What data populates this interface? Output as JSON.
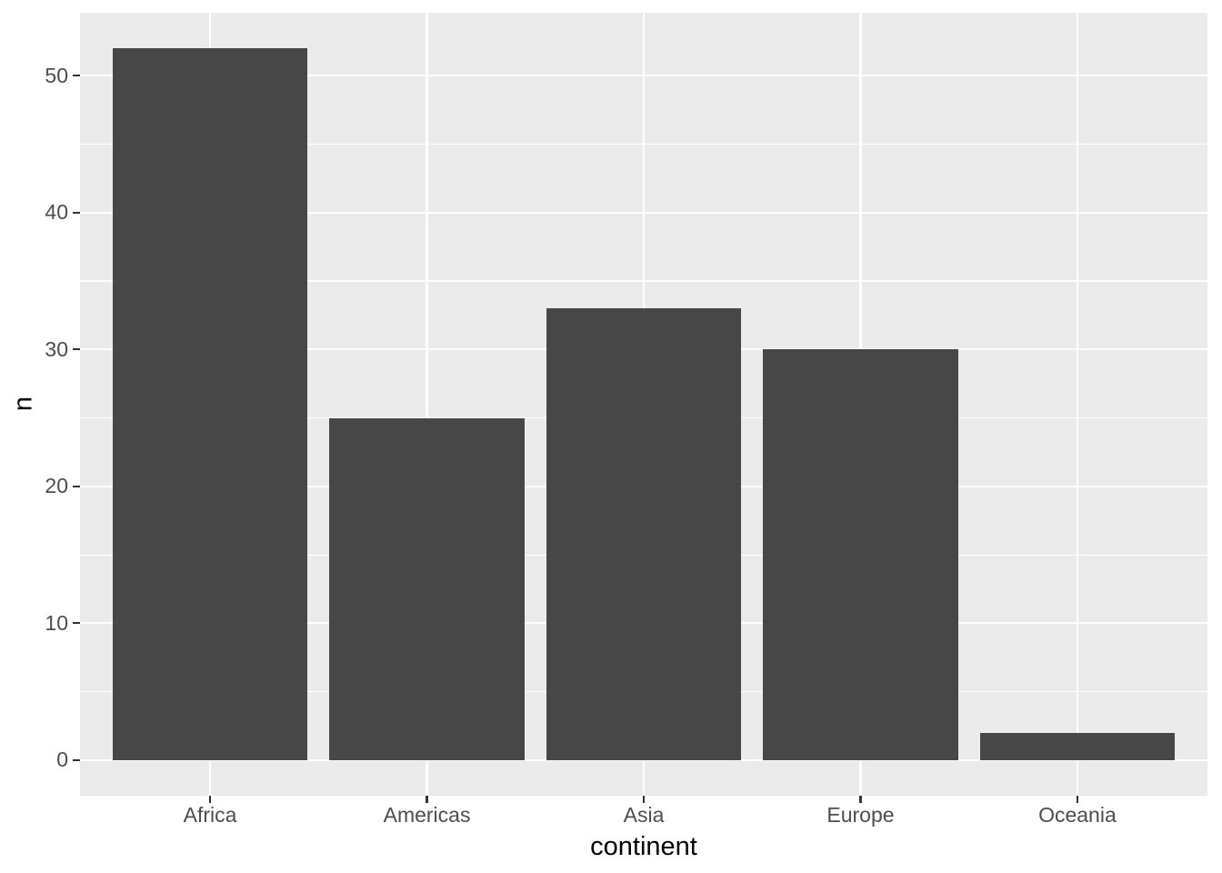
{
  "chart_data": {
    "type": "bar",
    "title": "",
    "xlabel": "continent",
    "ylabel": "n",
    "categories": [
      "Africa",
      "Americas",
      "Asia",
      "Europe",
      "Oceania"
    ],
    "values": [
      52,
      25,
      33,
      30,
      2
    ],
    "y_major_ticks": [
      0,
      10,
      20,
      30,
      40,
      50
    ],
    "y_minor_ticks": [
      5,
      15,
      25,
      35,
      45
    ],
    "ylim": [
      -2.6,
      54.6
    ],
    "x_expand": 0.6,
    "bar_width_fraction": 0.9,
    "grid": "major-and-minor",
    "legend_position": "none",
    "colors": {
      "bar_fill": "#474747",
      "panel_background": "#EBEBEB",
      "plot_background": "#FFFFFF",
      "grid_major": "#FFFFFF",
      "grid_minor": "#FFFFFF",
      "tick_mark": "#333333",
      "tick_label": "#4D4D4D",
      "axis_title": "#000000"
    }
  }
}
